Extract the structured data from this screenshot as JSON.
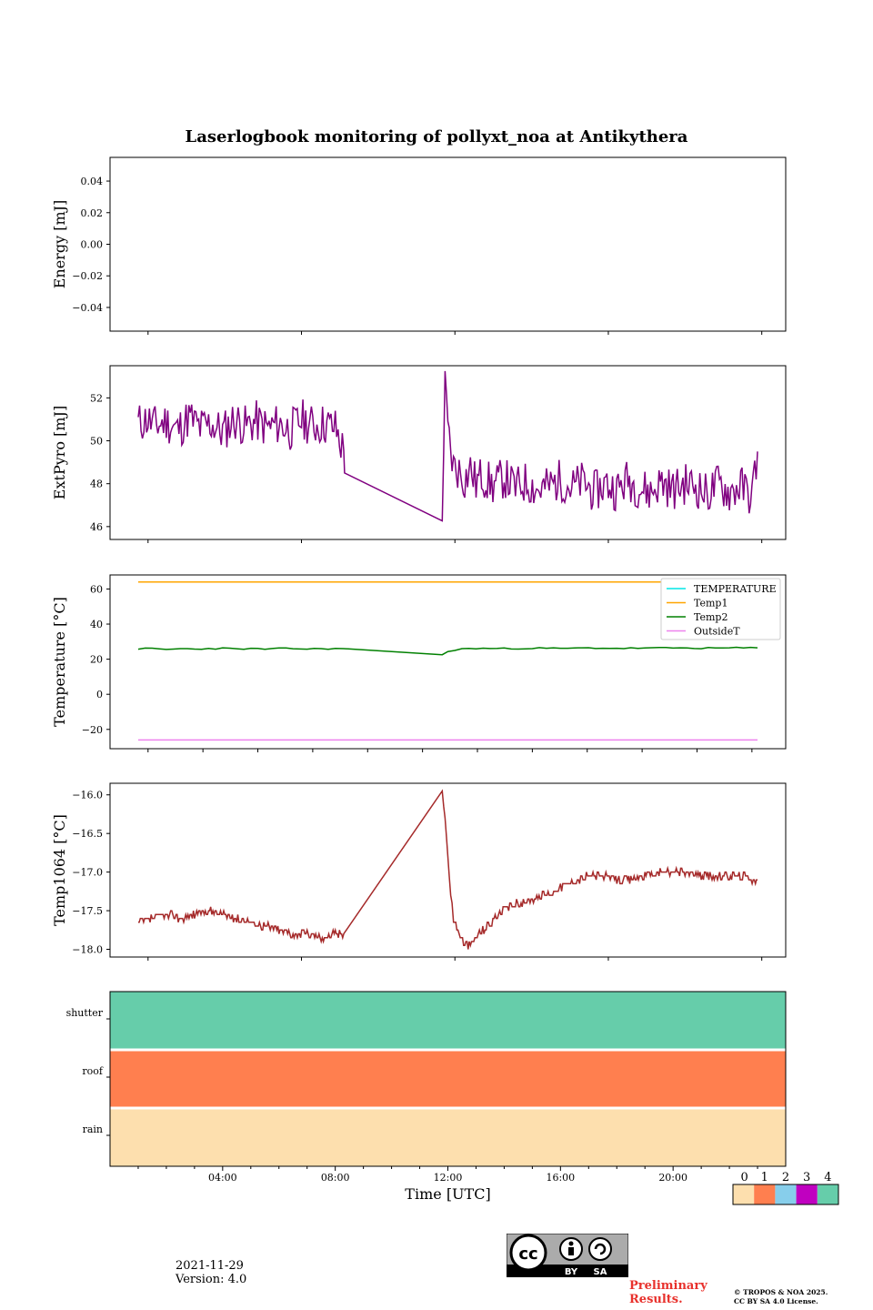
{
  "title": "Laserlogbook monitoring of pollyxt_noa at Antikythera",
  "footer": {
    "date": "2021-11-29",
    "version": "Version: 4.0",
    "preliminary_line1": "Preliminary",
    "preliminary_line2": "Results.",
    "copyright_line1": "© TROPOS & NOA 2025.",
    "copyright_line2": "CC BY SA 4.0 License.",
    "license_badge": {
      "icon": "cc-by-sa-icon",
      "text_by": "BY",
      "text_sa": "SA",
      "text_cc": "cc"
    }
  },
  "colors": {
    "extpyro": "#800080",
    "temperature": "#00e5e5",
    "temp1": "#ffa500",
    "temp2": "#008000",
    "outsideT": "#ee82ee",
    "temp1064": "#a52a2a",
    "status_0": "#fddfae",
    "status_1": "#ff7f4f",
    "status_2": "#87ceeb",
    "status_3": "#c000c0",
    "status_4": "#66cdaa"
  },
  "chart_data": [
    {
      "type": "line",
      "id": "energy",
      "ylabel": "Energy [mJ]",
      "ylim": [
        -0.055,
        0.055
      ],
      "yticks": [
        "0.04",
        "0.02",
        "0.00",
        "−0.02",
        "−0.04"
      ],
      "ytick_values": [
        0.04,
        0.02,
        0.0,
        -0.02,
        -0.04
      ],
      "series": []
    },
    {
      "type": "line",
      "id": "extpyro",
      "ylabel": "ExtPyro [mJ]",
      "ylim": [
        45.4,
        53.5
      ],
      "yticks": [
        "52",
        "50",
        "48",
        "46"
      ],
      "ytick_values": [
        52,
        50,
        48,
        46
      ],
      "series": [
        {
          "color_key": "extpyro",
          "x": [
            1.0,
            1.3,
            1.6,
            2.0,
            2.4,
            2.8,
            3.2,
            3.6,
            4.0,
            4.4,
            4.8,
            5.2,
            5.6,
            6.0,
            6.4,
            6.8,
            7.2,
            7.6,
            8.0,
            8.3,
            8.33,
            11.8,
            11.9,
            12.0,
            12.1,
            12.2,
            12.4,
            12.6,
            12.8,
            13.0,
            13.2,
            13.6,
            14.0,
            14.4,
            14.8,
            15.2,
            15.6,
            16.0,
            16.4,
            16.8,
            17.2,
            17.6,
            18.0,
            18.4,
            18.8,
            19.2,
            19.6,
            20.0,
            20.4,
            20.8,
            21.2,
            21.6,
            22.0,
            22.4,
            22.8,
            23.0
          ],
          "y": [
            50.8,
            51.0,
            50.7,
            50.9,
            50.5,
            51.1,
            50.6,
            50.8,
            50.4,
            51.0,
            50.7,
            50.9,
            50.6,
            50.8,
            50.5,
            51.0,
            50.7,
            50.8,
            50.6,
            49.5,
            48.5,
            46.9,
            52.5,
            50.5,
            49.5,
            48.8,
            48.6,
            48.2,
            48.7,
            48.0,
            48.4,
            47.9,
            48.3,
            47.8,
            48.1,
            47.7,
            47.9,
            48.2,
            47.8,
            48.1,
            47.6,
            48.0,
            47.7,
            48.2,
            47.8,
            47.6,
            48.1,
            47.7,
            48.0,
            47.9,
            47.5,
            48.0,
            47.6,
            47.9,
            47.4,
            49.5
          ]
        }
      ]
    },
    {
      "type": "line",
      "id": "temperature",
      "ylabel": "Temperature [°C]",
      "ylim": [
        -31,
        68
      ],
      "yticks": [
        "60",
        "40",
        "20",
        "0",
        "−20"
      ],
      "ytick_values": [
        60,
        40,
        20,
        0,
        -20
      ],
      "legend_position": "top-right",
      "series": [
        {
          "name": "TEMPERATURE",
          "color_key": "temperature",
          "x": [],
          "y": []
        },
        {
          "name": "Temp1",
          "color_key": "temp1",
          "x": [
            1.0,
            23.0
          ],
          "y": [
            64,
            64
          ]
        },
        {
          "name": "Temp2",
          "color_key": "temp2",
          "x": [
            1.0,
            1.5,
            2.0,
            2.5,
            3.0,
            3.5,
            4.0,
            4.5,
            5.0,
            5.5,
            6.0,
            6.5,
            7.0,
            7.5,
            8.0,
            8.3,
            11.8,
            12.0,
            12.5,
            13.0,
            14.0,
            15.0,
            16.0,
            17.0,
            18.0,
            19.0,
            20.0,
            21.0,
            22.0,
            23.0
          ],
          "y": [
            26,
            26,
            25.5,
            26,
            25.8,
            26,
            26.2,
            25.8,
            26,
            25.7,
            26,
            26.1,
            25.8,
            26,
            26,
            26,
            22.3,
            24.5,
            25.8,
            26.2,
            26.0,
            26.3,
            26.1,
            26.4,
            26.2,
            26.3,
            26.4,
            26.3,
            26.4,
            26.5
          ]
        },
        {
          "name": "OutsideT",
          "color_key": "outsideT",
          "x": [
            1.0,
            23.0
          ],
          "y": [
            -26,
            -26
          ]
        }
      ]
    },
    {
      "type": "line",
      "id": "temp1064",
      "ylabel": "Temp1064 [°C]",
      "ylim": [
        -18.1,
        -15.85
      ],
      "yticks": [
        "−16.0",
        "−16.5",
        "−17.0",
        "−17.5",
        "−18.0"
      ],
      "ytick_values": [
        -16.0,
        -16.5,
        -17.0,
        -17.5,
        -18.0
      ],
      "series": [
        {
          "color_key": "temp1064",
          "x": [
            1.0,
            1.5,
            2.0,
            2.5,
            3.0,
            3.5,
            4.0,
            4.5,
            5.0,
            5.5,
            6.0,
            6.5,
            7.0,
            7.5,
            8.0,
            8.3,
            11.8,
            11.9,
            12.0,
            12.1,
            12.2,
            12.4,
            12.6,
            12.8,
            13.0,
            13.4,
            13.8,
            14.2,
            14.6,
            15.0,
            15.4,
            15.8,
            16.2,
            16.6,
            17.0,
            17.5,
            18.0,
            18.5,
            19.0,
            19.5,
            20.0,
            20.5,
            21.0,
            21.5,
            22.0,
            22.5,
            23.0
          ],
          "y": [
            -17.65,
            -17.6,
            -17.55,
            -17.6,
            -17.55,
            -17.5,
            -17.55,
            -17.6,
            -17.65,
            -17.7,
            -17.75,
            -17.8,
            -17.8,
            -17.85,
            -17.8,
            -17.8,
            -15.9,
            -16.3,
            -16.8,
            -17.3,
            -17.6,
            -17.8,
            -17.95,
            -17.95,
            -17.85,
            -17.7,
            -17.55,
            -17.45,
            -17.4,
            -17.35,
            -17.3,
            -17.25,
            -17.15,
            -17.1,
            -17.05,
            -17.05,
            -17.1,
            -17.1,
            -17.05,
            -17.0,
            -17.0,
            -17.0,
            -17.05,
            -17.05,
            -17.05,
            -17.05,
            -17.1
          ]
        }
      ]
    },
    {
      "type": "heatmap",
      "id": "status",
      "rows": [
        "shutter",
        "roof",
        "rain"
      ],
      "row_values": [
        4,
        1,
        0
      ],
      "xlabel": "Time [UTC]",
      "xlim": [
        0,
        24
      ],
      "xticks": [
        "04:00",
        "08:00",
        "12:00",
        "16:00",
        "20:00"
      ],
      "xtick_values": [
        4,
        8,
        12,
        16,
        20
      ],
      "colorbar": {
        "labels": [
          "0",
          "1",
          "2",
          "3",
          "4"
        ],
        "color_keys": [
          "status_0",
          "status_1",
          "status_2",
          "status_3",
          "status_4"
        ]
      }
    }
  ]
}
